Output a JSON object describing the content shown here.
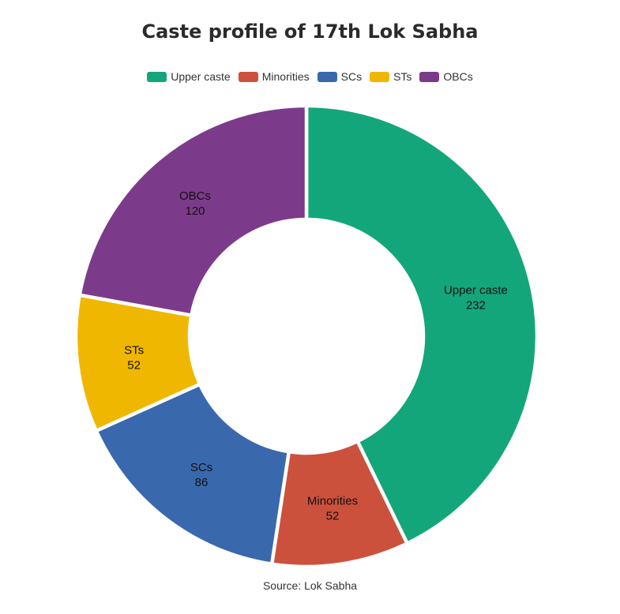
{
  "chart_data": {
    "type": "pie",
    "variant": "donut",
    "title": "Caste profile of 17th Lok Sabha",
    "source": "Source: Lok Sabha",
    "legend_position": "top",
    "categories": [
      "Upper caste",
      "Minorities",
      "SCs",
      "STs",
      "OBCs"
    ],
    "values": [
      232,
      52,
      86,
      52,
      120
    ],
    "colors": [
      "#13a67a",
      "#cc513d",
      "#3a68ad",
      "#f0b700",
      "#7c3b8a"
    ]
  }
}
